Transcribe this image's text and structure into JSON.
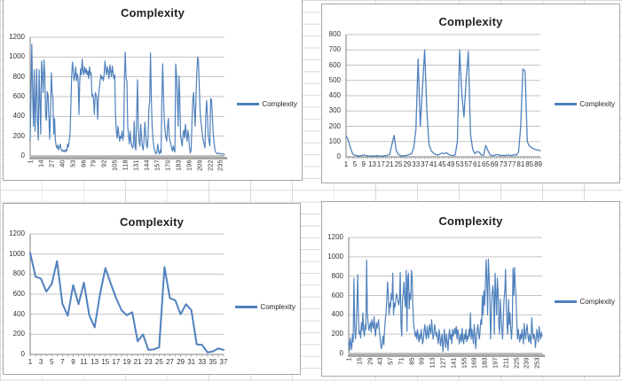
{
  "colors": {
    "line": "#4F81BD",
    "gridline": "#c3c3c3",
    "axis": "#7f7f7f",
    "baseline": "#a8a8a8",
    "title": "#1f1f1f",
    "worksheet_grid": "#d9d9d9"
  },
  "chart_data": [
    {
      "type": "line",
      "title": "Complexity",
      "legend": "Complexity",
      "ylim": [
        0,
        1200
      ],
      "y_step": 200,
      "grid": true,
      "legend_position": "right",
      "x_tick_values": [
        1,
        14,
        27,
        40,
        53,
        66,
        79,
        92,
        105,
        118,
        131,
        144,
        157,
        170,
        183,
        196,
        209,
        222,
        235
      ],
      "x_rotated": true,
      "thick_baseline": true,
      "minor_ticks": false,
      "line_color": "#4F81BD",
      "line_width": 1.2,
      "values": [
        150,
        620,
        1130,
        650,
        300,
        870,
        250,
        560,
        880,
        340,
        160,
        870,
        560,
        220,
        960,
        820,
        640,
        970,
        830,
        420,
        360,
        650,
        620,
        380,
        170,
        420,
        840,
        640,
        580,
        220,
        380,
        160,
        100,
        80,
        110,
        60,
        90,
        120,
        70,
        50,
        60,
        45,
        55,
        40,
        65,
        50,
        120,
        90,
        150,
        230,
        480,
        800,
        950,
        870,
        760,
        820,
        900,
        760,
        830,
        780,
        420,
        760,
        880,
        820,
        980,
        860,
        820,
        900,
        840,
        880,
        820,
        860,
        780,
        900,
        820,
        840,
        600,
        620,
        560,
        420,
        640,
        620,
        580,
        370,
        600,
        680,
        760,
        820,
        780,
        800,
        760,
        820,
        960,
        880,
        820,
        900,
        860,
        780,
        920,
        860,
        800,
        910,
        840,
        780,
        820,
        400,
        250,
        180,
        300,
        220,
        150,
        200,
        180,
        250,
        160,
        220,
        800,
        1050,
        780,
        760,
        300,
        200,
        120,
        250,
        150,
        100,
        80,
        120,
        350,
        90,
        60,
        400,
        770,
        300,
        150,
        100,
        320,
        200,
        100,
        60,
        150,
        340,
        240,
        120,
        80,
        180,
        480,
        550,
        1040,
        600,
        300,
        180,
        100,
        60,
        30,
        20,
        50,
        120,
        40,
        20,
        60,
        30,
        580,
        930,
        600,
        350,
        250,
        180,
        150,
        300,
        380,
        200,
        150,
        120,
        80,
        50,
        100,
        60,
        40,
        930,
        820,
        600,
        300,
        810,
        600,
        200,
        150,
        100,
        220,
        260,
        180,
        320,
        220,
        150,
        260,
        200,
        80,
        30,
        60,
        350,
        560,
        640,
        450,
        300,
        620,
        850,
        1000,
        960,
        700,
        450,
        350,
        280,
        200,
        150,
        120,
        80,
        400,
        560,
        420,
        200,
        150,
        100,
        580,
        570,
        420,
        250,
        150,
        80,
        40,
        30,
        25,
        20,
        30,
        25,
        20,
        18,
        22,
        20,
        18,
        15
      ]
    },
    {
      "type": "line",
      "title": "Complexity",
      "legend": "Complexity",
      "ylim": [
        0,
        800
      ],
      "y_step": 100,
      "grid": true,
      "legend_position": "right",
      "x_tick_values": [
        1,
        5,
        9,
        13,
        17,
        21,
        25,
        29,
        33,
        37,
        41,
        45,
        49,
        53,
        57,
        61,
        65,
        69,
        73,
        77,
        81,
        85,
        89
      ],
      "x_rotated": false,
      "thick_baseline": false,
      "minor_ticks": true,
      "line_color": "#4F81BD",
      "line_width": 1.3,
      "values": [
        140,
        110,
        60,
        20,
        10,
        8,
        6,
        8,
        12,
        8,
        6,
        5,
        6,
        5,
        8,
        6,
        5,
        6,
        8,
        10,
        15,
        80,
        140,
        40,
        15,
        8,
        6,
        8,
        10,
        15,
        20,
        60,
        180,
        640,
        200,
        450,
        700,
        300,
        80,
        40,
        25,
        15,
        12,
        18,
        25,
        20,
        28,
        15,
        10,
        8,
        12,
        100,
        700,
        420,
        260,
        500,
        690,
        150,
        50,
        20,
        35,
        30,
        12,
        10,
        75,
        40,
        12,
        8,
        10,
        15,
        12,
        8,
        10,
        8,
        12,
        10,
        8,
        15,
        10,
        30,
        200,
        575,
        560,
        100,
        70,
        60,
        52,
        48,
        44,
        40
      ]
    },
    {
      "type": "line",
      "title": "Complexity",
      "legend": "Complexity",
      "ylim": [
        0,
        1200
      ],
      "y_step": 200,
      "grid": true,
      "legend_position": "right",
      "x_tick_values": [
        1,
        3,
        5,
        7,
        9,
        11,
        13,
        15,
        17,
        19,
        21,
        23,
        25,
        27,
        29,
        31,
        33,
        35,
        37
      ],
      "x_rotated": false,
      "thick_baseline": false,
      "minor_ticks": true,
      "line_color": "#4F81BD",
      "line_width": 2,
      "values": [
        1010,
        775,
        755,
        625,
        700,
        930,
        505,
        385,
        690,
        500,
        715,
        390,
        270,
        600,
        860,
        705,
        560,
        440,
        390,
        420,
        130,
        200,
        45,
        50,
        70,
        870,
        560,
        540,
        400,
        500,
        440,
        100,
        95,
        20,
        30,
        60,
        45
      ]
    },
    {
      "type": "line",
      "title": "Complexity",
      "legend": "Complexity",
      "ylim": [
        0,
        1200
      ],
      "y_step": 200,
      "grid": true,
      "legend_position": "right",
      "x_tick_values": [
        1,
        15,
        29,
        43,
        57,
        71,
        85,
        99,
        113,
        127,
        141,
        155,
        169,
        183,
        197,
        211,
        225,
        239,
        253
      ],
      "x_rotated": true,
      "thick_baseline": true,
      "minor_ticks": false,
      "line_color": "#4F81BD",
      "line_width": 1.2,
      "values": [
        130,
        30,
        160,
        90,
        40,
        200,
        120,
        780,
        300,
        150,
        250,
        480,
        815,
        420,
        200,
        230,
        160,
        320,
        240,
        420,
        230,
        180,
        300,
        250,
        965,
        420,
        310,
        240,
        280,
        320,
        220,
        350,
        300,
        260,
        380,
        240,
        180,
        320,
        260,
        300,
        350,
        230,
        160,
        80,
        50,
        120,
        180,
        90,
        240,
        350,
        420,
        560,
        740,
        620,
        400,
        520,
        480,
        620,
        560,
        830,
        400,
        520,
        480,
        560,
        620,
        580,
        540,
        500,
        560,
        840,
        300,
        180,
        560,
        620,
        740,
        560,
        480,
        860,
        230,
        780,
        830,
        460,
        620,
        560,
        860,
        780,
        460,
        300,
        250,
        180,
        220,
        150,
        250,
        180,
        120,
        200,
        150,
        250,
        180,
        100,
        150,
        250,
        300,
        200,
        150,
        280,
        200,
        160,
        300,
        250,
        200,
        350,
        250,
        150,
        200,
        300,
        250,
        180,
        220,
        150,
        100,
        250,
        180,
        80,
        150,
        200,
        20,
        100,
        250,
        150,
        60,
        200,
        120,
        30,
        180,
        250,
        150,
        200,
        100,
        250,
        180,
        220,
        260,
        200,
        280,
        150,
        250,
        200,
        100,
        150,
        200,
        120,
        260,
        150,
        100,
        200,
        150,
        250,
        120,
        180,
        150,
        250,
        180,
        420,
        150,
        250,
        180,
        100,
        300,
        200,
        50,
        150,
        250,
        300,
        200,
        150,
        250,
        350,
        300,
        600,
        400,
        650,
        500,
        700,
        970,
        750,
        400,
        975,
        800,
        600,
        150,
        400,
        620,
        700,
        600,
        200,
        830,
        620,
        400,
        780,
        650,
        300,
        200,
        560,
        400,
        250,
        150,
        350,
        560,
        650,
        870,
        500,
        300,
        200,
        560,
        300,
        420,
        250,
        150,
        300,
        880,
        600,
        890,
        700,
        600,
        350,
        150,
        250,
        180,
        120,
        200,
        150,
        250,
        180,
        100,
        310,
        200,
        150,
        250,
        300,
        180,
        120,
        200,
        150,
        100,
        370,
        250,
        150,
        200,
        180,
        60,
        150,
        250,
        180,
        120,
        280,
        200,
        150,
        220,
        180
      ]
    }
  ]
}
